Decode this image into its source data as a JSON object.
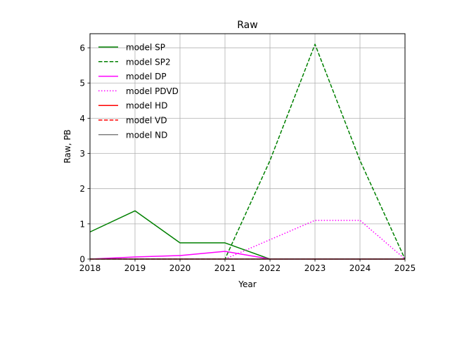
{
  "chart_data": {
    "type": "line",
    "title": "Raw",
    "xlabel": "Year",
    "ylabel": "Raw, PB",
    "x": [
      2018,
      2019,
      2020,
      2021,
      2022,
      2023,
      2024,
      2025
    ],
    "xlim": [
      2018,
      2025
    ],
    "ylim": [
      0,
      6.4
    ],
    "xticks": [
      2018,
      2019,
      2020,
      2021,
      2022,
      2023,
      2024,
      2025
    ],
    "yticks": [
      0,
      1,
      2,
      3,
      4,
      5,
      6
    ],
    "grid": true,
    "legend_position": "top-left",
    "series": [
      {
        "name": "model SP",
        "color": "#008000",
        "dash": "solid",
        "values": [
          0.77,
          1.37,
          0.46,
          0.46,
          0.0,
          0.0,
          0.0,
          0.0
        ]
      },
      {
        "name": "model SP2",
        "color": "#008000",
        "dash": "dashed",
        "values": [
          0.0,
          0.0,
          0.0,
          0.0,
          2.8,
          6.1,
          2.8,
          0.0
        ]
      },
      {
        "name": "model DP",
        "color": "#ff00ff",
        "dash": "solid",
        "values": [
          0.0,
          0.06,
          0.1,
          0.22,
          0.0,
          0.0,
          0.0,
          0.0
        ]
      },
      {
        "name": "model PDVD",
        "color": "#ff00ff",
        "dash": "dotted",
        "values": [
          0.0,
          0.0,
          0.0,
          0.0,
          0.55,
          1.1,
          1.1,
          0.0
        ]
      },
      {
        "name": "model HD",
        "color": "#ff0000",
        "dash": "solid",
        "values": [
          0.0,
          0.0,
          0.0,
          0.0,
          0.0,
          0.0,
          0.0,
          0.0
        ]
      },
      {
        "name": "model VD",
        "color": "#ff0000",
        "dash": "dashed",
        "values": [
          0.0,
          0.0,
          0.0,
          0.0,
          0.0,
          0.0,
          0.0,
          0.0
        ]
      },
      {
        "name": "model ND",
        "color": "#808080",
        "dash": "solid",
        "values": [
          0.0,
          0.0,
          0.0,
          0.0,
          0.0,
          0.0,
          0.0,
          0.0
        ]
      }
    ]
  }
}
